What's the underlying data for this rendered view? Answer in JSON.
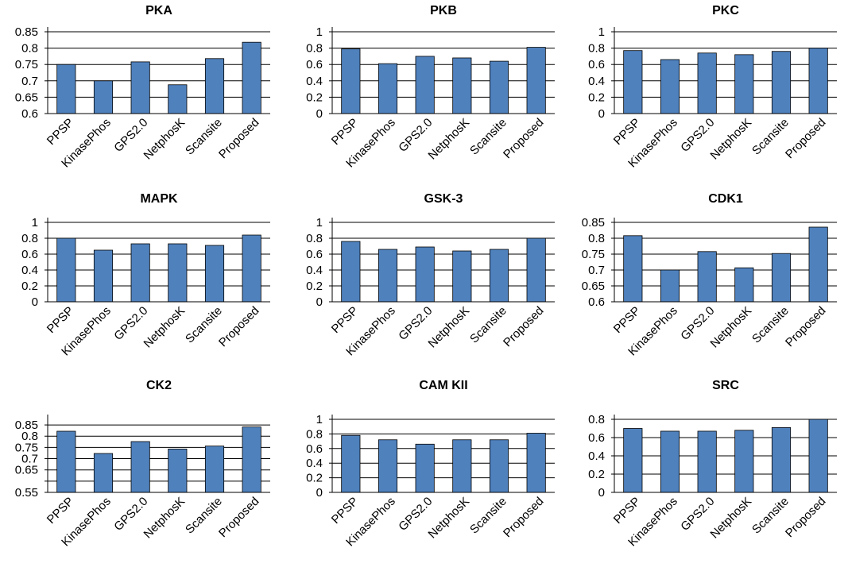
{
  "colors": {
    "bar_fill": "#4f81bd",
    "bar_stroke": "#000000",
    "grid": "#000000",
    "background": "#ffffff"
  },
  "chart_data": [
    {
      "type": "bar",
      "title": "PKA",
      "categories": [
        "PPSP",
        "KinasePhos",
        "GPS2.0",
        "NetphosK",
        "Scansite",
        "Proposed"
      ],
      "values": [
        0.75,
        0.7,
        0.758,
        0.688,
        0.768,
        0.818
      ],
      "ylim": [
        0.6,
        0.85
      ],
      "yticks": [
        "0.6",
        "0.65",
        "0.7",
        "0.75",
        "0.8",
        "0.85"
      ]
    },
    {
      "type": "bar",
      "title": "PKB",
      "categories": [
        "PPSP",
        "KinasePhos",
        "GPS2.0",
        "NetphosK",
        "Scansite",
        "Proposed"
      ],
      "values": [
        0.79,
        0.61,
        0.7,
        0.68,
        0.64,
        0.81
      ],
      "ylim": [
        0,
        1
      ],
      "yticks": [
        "0",
        "0.2",
        "0.4",
        "0.6",
        "0.8",
        "1"
      ]
    },
    {
      "type": "bar",
      "title": "PKC",
      "categories": [
        "PPSP",
        "KinasePhos",
        "GPS2.0",
        "NetphosK",
        "Scansite",
        "Proposed"
      ],
      "values": [
        0.77,
        0.66,
        0.74,
        0.72,
        0.76,
        0.8
      ],
      "ylim": [
        0,
        1
      ],
      "yticks": [
        "0",
        "0.2",
        "0.4",
        "0.6",
        "0.8",
        "1"
      ]
    },
    {
      "type": "bar",
      "title": "MAPK",
      "categories": [
        "PPSP",
        "KinasePhos",
        "GPS2.0",
        "NetphosK",
        "Scansite",
        "Proposed"
      ],
      "values": [
        0.8,
        0.65,
        0.73,
        0.73,
        0.71,
        0.84
      ],
      "ylim": [
        0,
        1
      ],
      "yticks": [
        "0",
        "0.2",
        "0.4",
        "0.6",
        "0.8",
        "1"
      ]
    },
    {
      "type": "bar",
      "title": "GSK-3",
      "categories": [
        "PPSP",
        "KinasePhos",
        "GPS2.0",
        "NetphosK",
        "Scansite",
        "Proposed"
      ],
      "values": [
        0.76,
        0.66,
        0.69,
        0.64,
        0.66,
        0.8
      ],
      "ylim": [
        0,
        1
      ],
      "yticks": [
        "0",
        "0.2",
        "0.4",
        "0.6",
        "0.8",
        "1"
      ]
    },
    {
      "type": "bar",
      "title": "CDK1",
      "categories": [
        "PPSP",
        "KinasePhos",
        "GPS2.0",
        "NetphosK",
        "Scansite",
        "Proposed"
      ],
      "values": [
        0.808,
        0.7,
        0.758,
        0.707,
        0.752,
        0.835
      ],
      "ylim": [
        0.6,
        0.85
      ],
      "yticks": [
        "0.6",
        "0.65",
        "0.7",
        "0.75",
        "0.8",
        "0.85"
      ]
    },
    {
      "type": "bar",
      "title": "CK2",
      "categories": [
        "PPSP",
        "KinasePhos",
        "GPS2.0",
        "NetphosK",
        "Scansite",
        "Proposed"
      ],
      "values": [
        0.822,
        0.723,
        0.776,
        0.743,
        0.756,
        0.841
      ],
      "ylim": [
        0.55,
        0.875
      ],
      "yticks": [
        "0.55",
        "0.6",
        "0.65",
        "0.7",
        "0.75",
        "0.8",
        "0.85"
      ],
      "ytick_labels_shown": [
        "0.55",
        "",
        "0.65",
        "0.7",
        "0.75",
        "0.8",
        "0.85"
      ]
    },
    {
      "type": "bar",
      "title": "CAM KII",
      "categories": [
        "PPSP",
        "KinasePhos",
        "GPS2.0",
        "NetphosK",
        "Scansite",
        "Proposed"
      ],
      "values": [
        0.78,
        0.72,
        0.66,
        0.72,
        0.72,
        0.81
      ],
      "ylim": [
        0,
        1
      ],
      "yticks": [
        "0",
        "0.2",
        "0.4",
        "0.6",
        "0.8",
        "1"
      ]
    },
    {
      "type": "bar",
      "title": "SRC",
      "categories": [
        "PPSP",
        "KinasePhos",
        "GPS2.0",
        "NetphosK",
        "Scansite",
        "Proposed"
      ],
      "values": [
        0.7,
        0.67,
        0.67,
        0.68,
        0.71,
        0.8
      ],
      "ylim": [
        0,
        0.8
      ],
      "yticks": [
        "0",
        "0.2",
        "0.4",
        "0.6",
        "0.8"
      ]
    }
  ]
}
